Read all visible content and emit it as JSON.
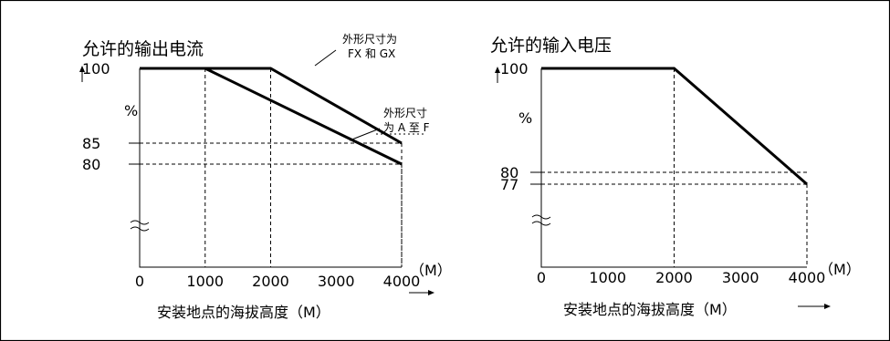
{
  "chart_data": [
    {
      "type": "line",
      "title": "允许的输出电流",
      "xlabel": "安装地点的海拔高度（M）",
      "x_unit": "（M）",
      "y_unit": "%",
      "x_ticks": [
        "0",
        "1000",
        "2000",
        "3000",
        "4000"
      ],
      "y_ticks": [
        "100",
        "85",
        "80"
      ],
      "xlim": [
        0,
        4000
      ],
      "series": [
        {
          "name": "外形尺寸为FX和GX",
          "label_lines": [
            "外形尺寸为",
            "FX 和 GX"
          ],
          "x": [
            0,
            2000,
            4000
          ],
          "y": [
            100,
            100,
            85
          ]
        },
        {
          "name": "外形尺寸为A至F",
          "label_lines": [
            "外形尺寸",
            "为 A 至 F"
          ],
          "x": [
            0,
            1000,
            4000
          ],
          "y": [
            100,
            100,
            80
          ]
        }
      ],
      "axis_break": true,
      "grid": "dashed reference lines"
    },
    {
      "type": "line",
      "title": "允许的输入电压",
      "xlabel": "安装地点的海拔高度（M）",
      "x_unit": "（M）",
      "y_unit": "%",
      "x_ticks": [
        "0",
        "1000",
        "2000",
        "3000",
        "4000"
      ],
      "y_ticks": [
        "100",
        "80",
        "77"
      ],
      "xlim": [
        0,
        4000
      ],
      "series": [
        {
          "x": [
            0,
            2000,
            4000
          ],
          "y": [
            100,
            100,
            77
          ]
        }
      ],
      "axis_break": true,
      "grid": "dashed reference lines"
    }
  ]
}
